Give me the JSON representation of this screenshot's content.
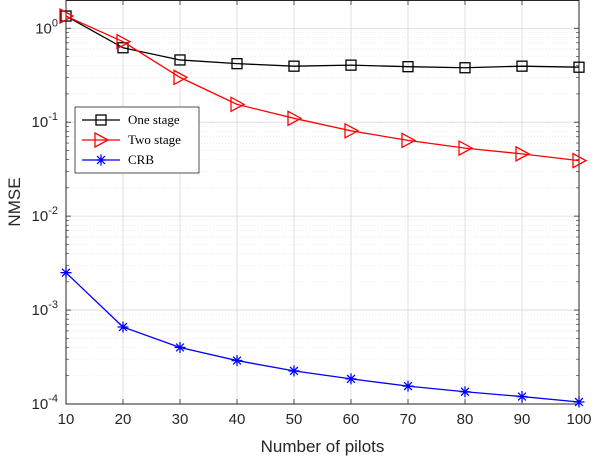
{
  "chart_data": {
    "type": "line",
    "xlabel": "Number of pilots",
    "ylabel": "NMSE",
    "xlim": [
      10,
      100
    ],
    "ylim": [
      0.0001,
      2
    ],
    "yscale": "log",
    "grid": true,
    "legend_position": "top-left",
    "x": [
      10,
      20,
      30,
      40,
      50,
      60,
      70,
      80,
      90,
      100
    ],
    "x_ticks": [
      "10",
      "20",
      "30",
      "40",
      "50",
      "60",
      "70",
      "80",
      "90",
      "100"
    ],
    "y_ticks": [
      {
        "base": "10",
        "exp": "0",
        "value": 1
      },
      {
        "base": "10",
        "exp": "-1",
        "value": 0.1
      },
      {
        "base": "10",
        "exp": "-2",
        "value": 0.01
      },
      {
        "base": "10",
        "exp": "-3",
        "value": 0.001
      },
      {
        "base": "10",
        "exp": "-4",
        "value": 0.0001
      }
    ],
    "series": [
      {
        "name": "One stage",
        "color": "#000000",
        "marker": "square",
        "values": [
          1.35,
          0.62,
          0.46,
          0.42,
          0.395,
          0.405,
          0.39,
          0.38,
          0.395,
          0.385
        ]
      },
      {
        "name": "Two stage",
        "color": "#ff0000",
        "marker": "triangle-right",
        "values": [
          1.35,
          0.72,
          0.3,
          0.155,
          0.11,
          0.081,
          0.064,
          0.053,
          0.046,
          0.039
        ]
      },
      {
        "name": "CRB",
        "color": "#0000ff",
        "marker": "asterisk",
        "values": [
          0.0025,
          0.00066,
          0.0004,
          0.00029,
          0.000225,
          0.000185,
          0.000155,
          0.000135,
          0.00012,
          0.000105
        ]
      }
    ]
  }
}
